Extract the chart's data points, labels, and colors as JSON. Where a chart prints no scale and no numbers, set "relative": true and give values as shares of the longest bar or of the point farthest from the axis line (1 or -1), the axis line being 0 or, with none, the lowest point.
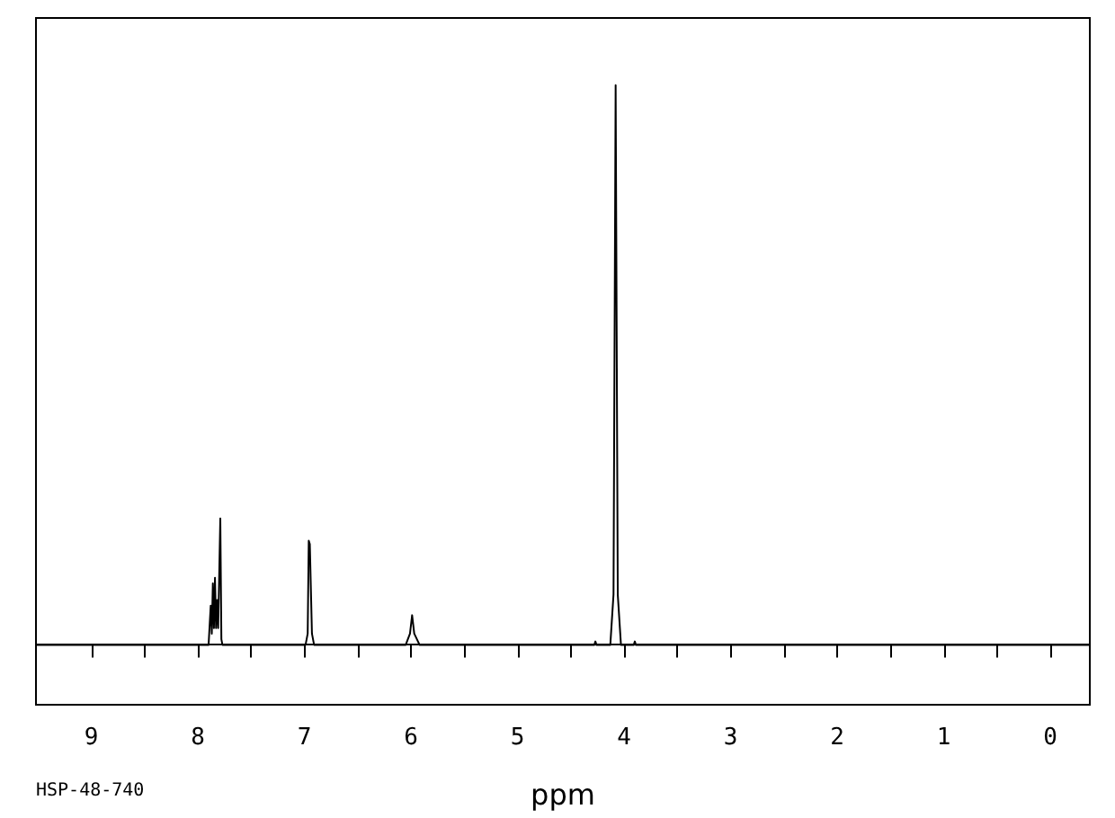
{
  "chart_data": {
    "type": "line",
    "relative": true,
    "xlabel": "ppm",
    "annotations": [
      "HSP-48-740"
    ],
    "xlim": [
      9.52,
      -0.37
    ],
    "xticks": [
      9,
      {
        "value": 8.5,
        "label": null
      },
      8,
      {
        "value": 7.5,
        "label": null
      },
      7,
      {
        "value": 6.5,
        "label": null
      },
      6,
      {
        "value": 5.5,
        "label": null
      },
      5,
      {
        "value": 4.5,
        "label": null
      },
      4,
      {
        "value": 3.5,
        "label": null
      },
      3,
      {
        "value": 2.5,
        "label": null
      },
      2,
      {
        "value": 1.5,
        "label": null
      },
      1,
      {
        "value": 0.5,
        "label": null
      },
      0
    ],
    "tick_labels": "x",
    "marker": "none",
    "grid": false,
    "series": [
      {
        "color": "#000000",
        "x": [
          9.52,
          7.95,
          7.9,
          7.88,
          7.87,
          7.86,
          7.85,
          7.84,
          7.83,
          7.82,
          7.81,
          7.8,
          7.79,
          7.78,
          7.77,
          7.72,
          6.99,
          6.97,
          6.96,
          6.95,
          6.94,
          6.93,
          6.91,
          6.05,
          6.01,
          5.99,
          5.97,
          5.92,
          4.28,
          4.27,
          4.26,
          4.13,
          4.1,
          4.08,
          4.06,
          4.03,
          3.91,
          3.9,
          3.89,
          -0.37
        ],
        "values": [
          0,
          0,
          0,
          0.07,
          0.02,
          0.11,
          0.03,
          0.12,
          0.03,
          0.08,
          0.03,
          0.03,
          0.226,
          0.01,
          0,
          0,
          0,
          0.02,
          0.186,
          0.18,
          0.18,
          0.02,
          0,
          0,
          0.02,
          0.053,
          0.02,
          0,
          0,
          0.006,
          0,
          0,
          0.09,
          1,
          0.09,
          0,
          0,
          0.006,
          0,
          0
        ]
      }
    ]
  }
}
